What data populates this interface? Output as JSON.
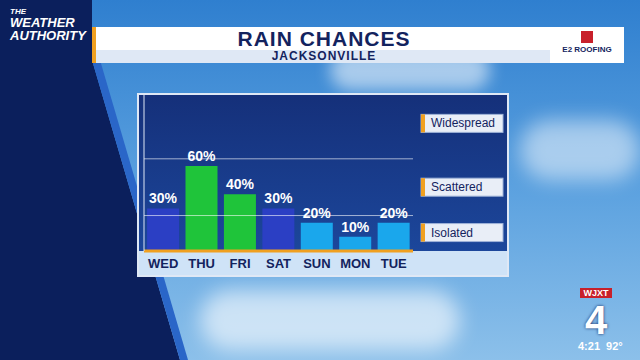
{
  "chart_data": {
    "type": "bar",
    "title": "RAIN CHANCES",
    "subtitle": "JACKSONVILLE",
    "categories": [
      "WED",
      "THU",
      "FRI",
      "SAT",
      "SUN",
      "MON",
      "TUE"
    ],
    "values": [
      30,
      60,
      40,
      30,
      20,
      10,
      20
    ],
    "value_labels": [
      "30%",
      "60%",
      "40%",
      "30%",
      "20%",
      "10%",
      "20%"
    ],
    "colors": [
      "#2b3fc4",
      "#1fc43a",
      "#1fc43a",
      "#2b3fc4",
      "#1aa7ec",
      "#1aa7ec",
      "#1aa7ec"
    ],
    "ylim": [
      0,
      110
    ],
    "yticks": [],
    "tick_labels": "x",
    "data_labels": true,
    "annotations": [
      {
        "text": "Widespread",
        "y": 90
      },
      {
        "text": "Scattered",
        "y": 45
      },
      {
        "text": "Isolated",
        "y": 13
      }
    ],
    "thresholds": [
      25,
      65
    ]
  },
  "screen": {
    "logo": "THE WEATHER AUTHORITY",
    "sponsor": "E2 ROOFING",
    "station": "WJXT",
    "channel": "4",
    "time": "4:21",
    "temperature": "92°"
  }
}
